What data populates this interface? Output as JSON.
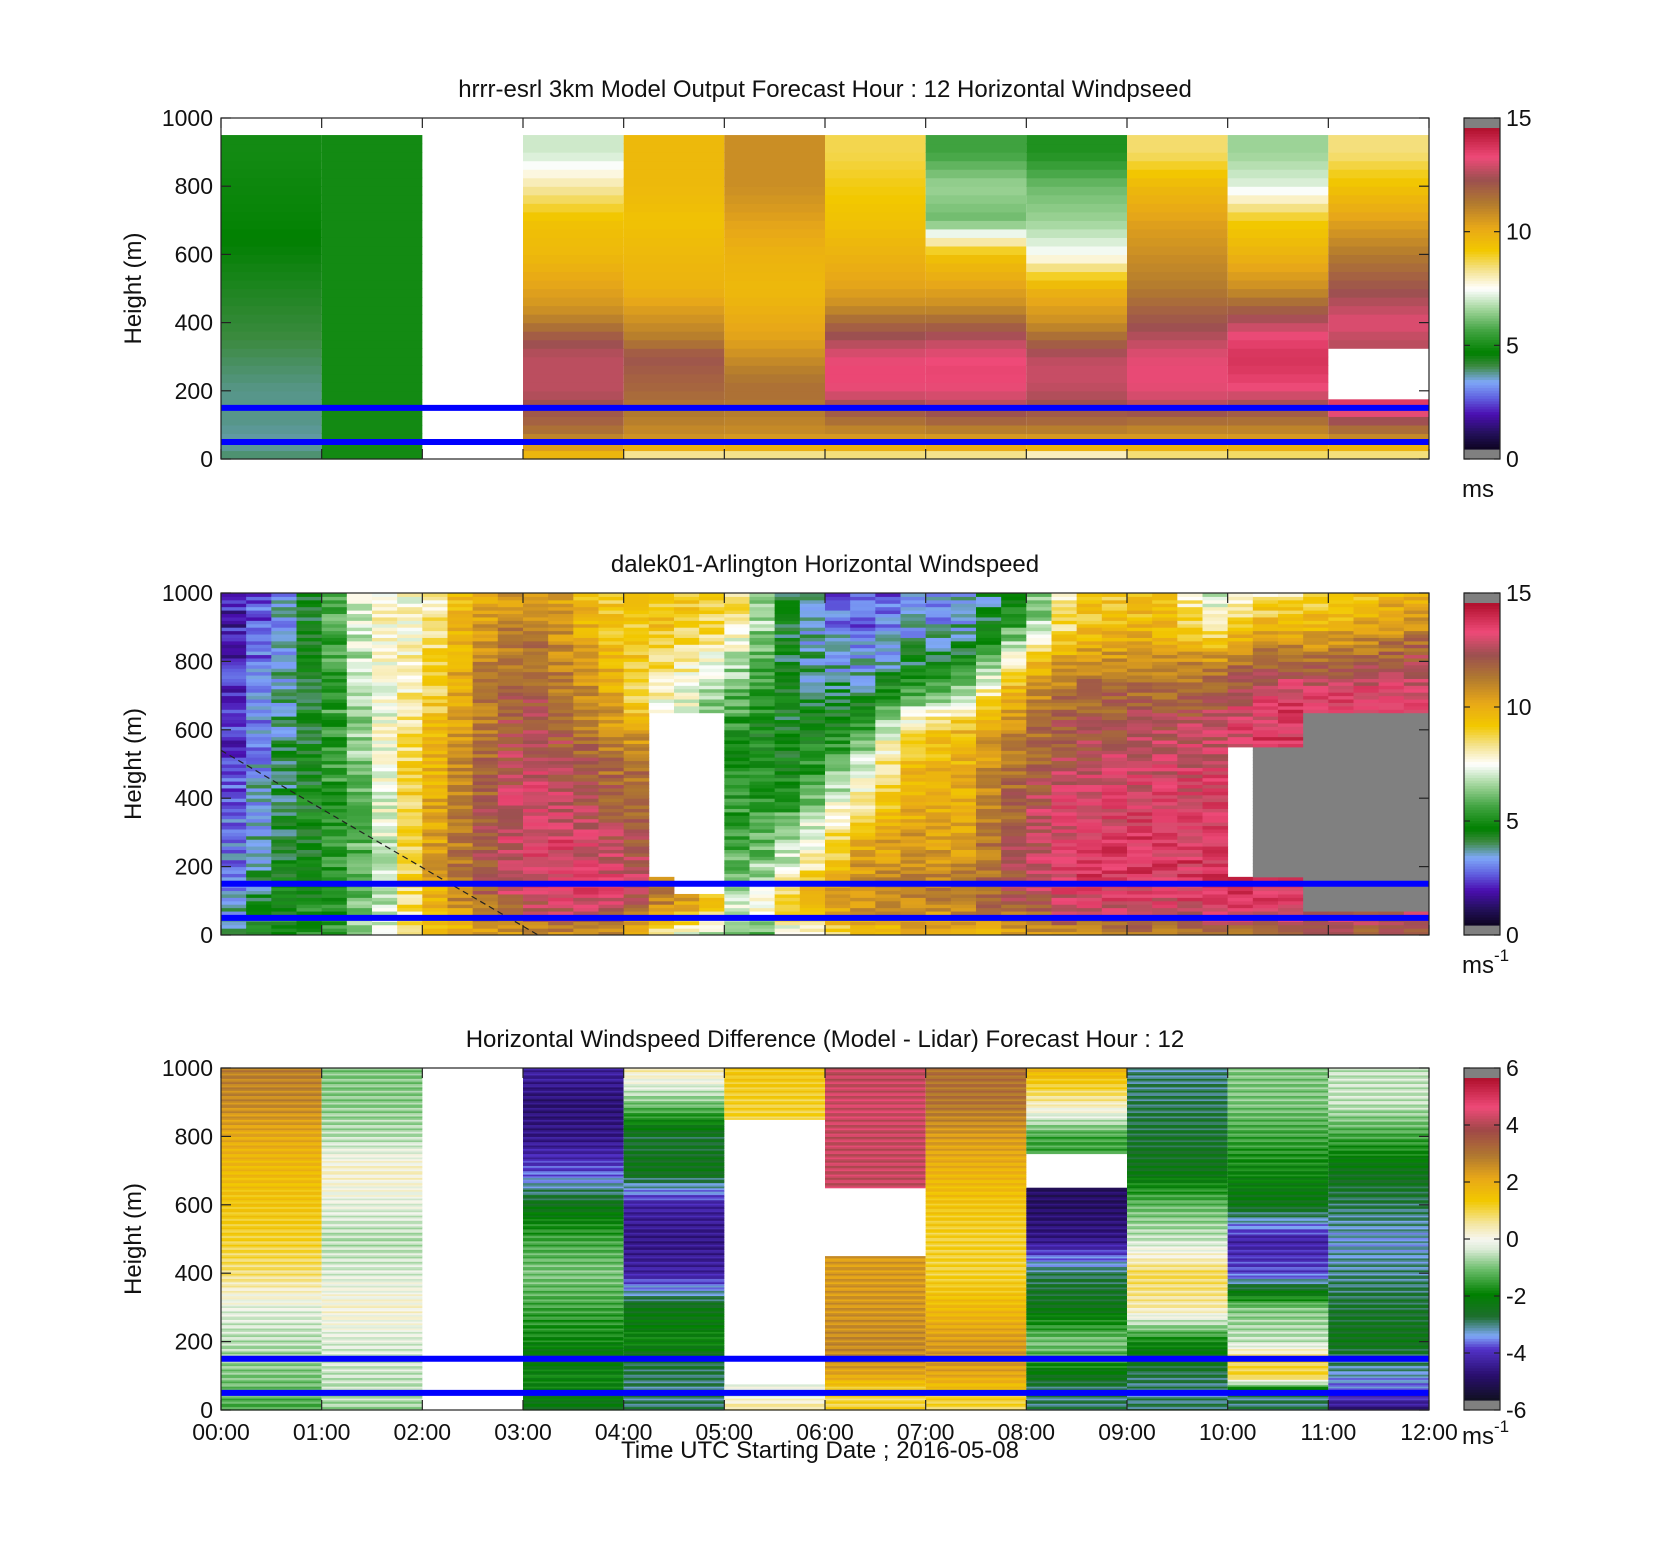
{
  "figure": {
    "xlabel": "Time UTC  Starting Date ; 2016-05-08",
    "x_tick_labels": [
      "00:00",
      "01:00",
      "02:00",
      "03:00",
      "04:00",
      "05:00",
      "06:00",
      "07:00",
      "08:00",
      "09:00",
      "10:00",
      "11:00",
      "12:00"
    ],
    "marker_line_color": "#0000ff",
    "marker_line_heights_m": [
      50,
      150
    ]
  },
  "chart_data": [
    {
      "type": "heatmap",
      "title": "hrrr-esrl 3km Model Output   Forecast Hour : 12 Horizontal Windpseed",
      "ylabel": "Height (m)",
      "xlim": [
        0,
        12
      ],
      "ylim": [
        0,
        1000
      ],
      "y_ticks": [
        0,
        200,
        400,
        600,
        800,
        1000
      ],
      "y_tick_labels": [
        "0",
        "200",
        "400",
        "600",
        "800",
        "1000"
      ],
      "colorbar": {
        "range": [
          0,
          15
        ],
        "ticks": [
          0,
          5,
          10,
          15
        ],
        "tick_labels": [
          "0",
          "5",
          "10",
          "15"
        ],
        "unit": "ms",
        "unit_superscript": "",
        "palette": "speed"
      },
      "time_columns_hours": [
        0,
        1,
        2,
        3,
        4,
        5,
        6,
        7,
        8,
        9,
        10,
        11
      ],
      "height_levels_m": [
        0,
        25,
        50,
        75,
        100,
        150,
        200,
        250,
        300,
        350,
        400,
        450,
        500,
        600,
        700,
        800,
        900,
        1000
      ],
      "values_by_column": [
        [
          3.8,
          3.6,
          3.5,
          3.5,
          3.6,
          3.6,
          3.6,
          3.7,
          3.8,
          3.9,
          4.0,
          4.1,
          4.2,
          4.4,
          4.6,
          4.7,
          4.8
        ],
        [
          4.8,
          4.8,
          4.8,
          4.8,
          4.8,
          4.8,
          4.8,
          4.8,
          4.8,
          4.8,
          4.8,
          4.8,
          4.8,
          4.8,
          4.8,
          4.8,
          4.8
        ],
        [
          null,
          null,
          null,
          null,
          null,
          null,
          null,
          null,
          null,
          null,
          null,
          null,
          null,
          null,
          null,
          null,
          null
        ],
        [
          9.6,
          10.2,
          11.0,
          11.5,
          12.0,
          12.5,
          13.0,
          13.0,
          13.0,
          12.5,
          11.5,
          10.8,
          10.5,
          9.8,
          9.5,
          8.2,
          7.0
        ],
        [
          7.2,
          9.5,
          10.8,
          11.0,
          11.3,
          11.6,
          12.0,
          12.2,
          12.5,
          11.5,
          11.0,
          10.5,
          10.0,
          9.8,
          9.5,
          9.8,
          9.8
        ],
        [
          7.0,
          9.8,
          10.5,
          11.0,
          11.2,
          11.5,
          11.8,
          11.5,
          11.0,
          10.5,
          10.3,
          10.0,
          9.8,
          10.0,
          10.5,
          11.0,
          11.0
        ],
        [
          7.2,
          9.8,
          10.5,
          11.0,
          11.5,
          12.5,
          13.5,
          13.8,
          13.5,
          12.8,
          12.0,
          11.0,
          10.5,
          10.0,
          9.5,
          9.2,
          8.8
        ],
        [
          6.8,
          10.0,
          10.5,
          11.0,
          11.8,
          12.8,
          13.5,
          13.8,
          13.6,
          13.0,
          12.0,
          11.0,
          10.5,
          9.5,
          6.0,
          6.5,
          5.5
        ],
        [
          6.5,
          9.5,
          10.5,
          11.0,
          11.8,
          12.5,
          13.0,
          13.2,
          13.0,
          12.0,
          11.0,
          10.5,
          10.0,
          7.5,
          6.5,
          6.0,
          5.0
        ],
        [
          7.5,
          9.6,
          10.5,
          11.0,
          11.5,
          12.8,
          13.5,
          13.6,
          13.5,
          13.0,
          12.5,
          12.0,
          11.5,
          11.0,
          10.5,
          9.8,
          8.6
        ],
        [
          7.5,
          9.8,
          10.5,
          11.0,
          11.5,
          12.5,
          13.5,
          14.0,
          14.2,
          13.8,
          13.0,
          12.0,
          11.0,
          10.0,
          9.2,
          7.2,
          6.5
        ],
        [
          7.8,
          9.2,
          10.8,
          11.5,
          12.2,
          14.0,
          null,
          null,
          null,
          13.0,
          13.5,
          13.0,
          12.5,
          11.5,
          10.5,
          9.5,
          8.5
        ]
      ]
    },
    {
      "type": "heatmap",
      "title": "dalek01-Arlington  Horizontal Windspeed",
      "ylabel": "Height (m)",
      "xlim": [
        0,
        12
      ],
      "ylim": [
        0,
        1000
      ],
      "y_ticks": [
        0,
        200,
        400,
        600,
        800,
        1000
      ],
      "y_tick_labels": [
        "0",
        "200",
        "400",
        "600",
        "800",
        "1000"
      ],
      "colorbar": {
        "range": [
          0,
          15
        ],
        "ticks": [
          0,
          5,
          10,
          15
        ],
        "tick_labels": [
          "0",
          "5",
          "10",
          "15"
        ],
        "unit": "ms",
        "unit_superscript": "-1",
        "palette": "speed"
      },
      "time_step_hours": 0.25,
      "height_levels_m": [
        0,
        50,
        100,
        150,
        200,
        300,
        400,
        500,
        600,
        700,
        800,
        900,
        1000
      ],
      "profile_keyframes": [
        {
          "t": 0.0,
          "values": [
            3.5,
            3.2,
            2.8,
            2.6,
            2.4,
            2.2,
            2.0,
            1.8,
            1.6,
            1.5,
            1.4,
            1.3,
            1.2
          ]
        },
        {
          "t": 0.25,
          "values": [
            4.5,
            4.0,
            3.6,
            3.4,
            3.2,
            3.0,
            2.8,
            2.6,
            2.4,
            2.3,
            2.2,
            2.1,
            2.0
          ]
        },
        {
          "t": 0.5,
          "values": [
            5.0,
            4.8,
            4.6,
            4.4,
            4.2,
            4.0,
            3.8,
            3.5,
            3.2,
            3.0,
            2.8,
            2.6,
            2.5
          ]
        },
        {
          "t": 1.0,
          "values": [
            5.0,
            5.0,
            4.8,
            4.8,
            4.8,
            4.8,
            4.8,
            4.8,
            4.8,
            4.8,
            4.8,
            4.8,
            4.8
          ]
        },
        {
          "t": 1.5,
          "values": [
            7.0,
            6.5,
            6.2,
            6.0,
            6.0,
            6.2,
            6.5,
            6.8,
            7.0,
            7.2,
            7.5,
            7.8,
            8.0
          ]
        },
        {
          "t": 2.0,
          "values": [
            9.0,
            9.0,
            9.5,
            9.8,
            10.0,
            10.0,
            9.8,
            9.5,
            9.0,
            8.5,
            8.2,
            7.8,
            7.5
          ]
        },
        {
          "t": 2.5,
          "values": [
            10.0,
            11.0,
            11.5,
            12.0,
            12.0,
            12.0,
            11.8,
            11.5,
            11.2,
            11.0,
            10.8,
            10.5,
            10.0
          ]
        },
        {
          "t": 3.0,
          "values": [
            10.5,
            12.0,
            13.0,
            13.5,
            13.5,
            13.6,
            13.5,
            13.2,
            13.0,
            12.5,
            12.0,
            11.5,
            11.0
          ]
        },
        {
          "t": 3.5,
          "values": [
            11.0,
            12.5,
            13.5,
            14.0,
            13.8,
            13.5,
            13.0,
            12.5,
            12.0,
            11.5,
            11.0,
            10.5,
            10.0
          ]
        },
        {
          "t": 4.0,
          "values": [
            10.5,
            12.0,
            13.0,
            13.5,
            13.0,
            12.5,
            12.0,
            11.5,
            10.5,
            10.0,
            9.5,
            9.0,
            9.0
          ]
        },
        {
          "t": 4.3,
          "values": [
            8.0,
            10.0,
            11.5,
            11.5,
            null,
            null,
            null,
            null,
            null,
            8.0,
            9.0,
            9.5,
            9.5
          ]
        },
        {
          "t": 4.75,
          "values": [
            7.0,
            9.0,
            10.5,
            null,
            null,
            null,
            null,
            null,
            null,
            7.0,
            8.0,
            9.0,
            9.5
          ]
        },
        {
          "t": 5.2,
          "values": [
            5.0,
            6.0,
            6.5,
            6.0,
            5.8,
            5.5,
            5.0,
            5.0,
            5.0,
            5.5,
            6.5,
            8.0,
            8.5
          ]
        },
        {
          "t": 5.7,
          "values": [
            7.0,
            9.0,
            10.0,
            8.5,
            7.5,
            6.5,
            5.0,
            4.5,
            4.2,
            4.0,
            3.8,
            3.6,
            3.5
          ]
        },
        {
          "t": 6.3,
          "values": [
            9.0,
            10.5,
            11.0,
            11.0,
            10.5,
            9.5,
            8.0,
            6.5,
            5.0,
            4.0,
            3.0,
            2.5,
            2.2
          ]
        },
        {
          "t": 6.8,
          "values": [
            10.0,
            10.8,
            11.0,
            11.2,
            11.0,
            10.5,
            10.0,
            9.5,
            8.5,
            5.5,
            4.0,
            3.0,
            2.5
          ]
        },
        {
          "t": 7.4,
          "values": [
            10.0,
            10.8,
            11.5,
            11.5,
            11.0,
            10.5,
            10.2,
            10.0,
            9.8,
            7.0,
            4.5,
            3.5,
            3.0
          ]
        },
        {
          "t": 8.0,
          "values": [
            10.5,
            11.5,
            12.5,
            13.0,
            13.0,
            12.8,
            12.5,
            12.0,
            11.5,
            11.0,
            9.0,
            6.0,
            5.0
          ]
        },
        {
          "t": 8.5,
          "values": [
            11.0,
            12.5,
            13.5,
            14.0,
            14.0,
            13.8,
            13.5,
            13.0,
            12.5,
            12.0,
            11.0,
            9.5,
            9.0
          ]
        },
        {
          "t": 9.3,
          "values": [
            11.0,
            12.5,
            13.5,
            14.0,
            14.0,
            13.8,
            13.5,
            13.2,
            12.8,
            12.0,
            11.0,
            10.0,
            9.5
          ]
        },
        {
          "t": 9.9,
          "values": [
            11.0,
            13.0,
            14.0,
            14.2,
            14.0,
            14.0,
            13.8,
            13.5,
            13.0,
            12.5,
            11.0,
            8.0,
            7.0
          ]
        },
        {
          "t": 10.3,
          "values": [
            12.0,
            13.5,
            14.0,
            14.0,
            null,
            null,
            null,
            null,
            14.0,
            13.5,
            12.0,
            10.0,
            8.0
          ]
        },
        {
          "t": 11.0,
          "values": [
            12.0,
            13.0,
            null,
            null,
            null,
            null,
            null,
            null,
            null,
            14.0,
            12.0,
            10.0,
            9.0
          ]
        },
        {
          "t": 11.75,
          "values": [
            12.0,
            13.0,
            null,
            null,
            null,
            null,
            null,
            null,
            null,
            13.5,
            12.5,
            11.0,
            10.0
          ]
        }
      ],
      "data_end_hour": 11.85,
      "annotation": "dashed diagonal line from (0, 540 m) to (3.15, 0 m)"
    },
    {
      "type": "heatmap",
      "title": "Horizontal Windspeed Difference (Model - Lidar) Forecast Hour : 12",
      "ylabel": "Height (m)",
      "xlim": [
        0,
        12
      ],
      "ylim": [
        0,
        1000
      ],
      "y_ticks": [
        0,
        200,
        400,
        600,
        800,
        1000
      ],
      "y_tick_labels": [
        "0",
        "200",
        "400",
        "600",
        "800",
        "1000"
      ],
      "colorbar": {
        "range": [
          -6,
          6
        ],
        "ticks": [
          -6,
          -4,
          -2,
          0,
          2,
          4,
          6
        ],
        "tick_labels": [
          "-6",
          "-4",
          "-2",
          "0",
          "2",
          "4",
          "6"
        ],
        "unit": "ms",
        "unit_superscript": "-1",
        "palette": "diff"
      },
      "time_columns_hours": [
        0,
        1,
        2,
        3,
        4,
        5,
        6,
        7,
        8,
        9,
        10,
        11
      ],
      "height_levels_m": [
        0,
        50,
        100,
        150,
        200,
        300,
        400,
        500,
        600,
        700,
        800,
        900,
        1000
      ],
      "values_by_column": [
        [
          -1.5,
          -1.2,
          -1.0,
          -0.8,
          -0.6,
          -0.2,
          0.8,
          1.2,
          1.5,
          1.8,
          2.2,
          2.8,
          3.0
        ],
        [
          -0.8,
          -0.6,
          -0.5,
          -0.4,
          -0.3,
          0.2,
          -0.3,
          -0.6,
          -0.2,
          0.3,
          -0.6,
          -0.9,
          -1.0
        ],
        [
          null,
          null,
          null,
          null,
          null,
          null,
          null,
          null,
          null,
          null,
          null,
          null,
          null
        ],
        [
          -2.5,
          -2.2,
          -2.0,
          -2.5,
          -2.0,
          -1.5,
          -1.0,
          -1.5,
          -2.5,
          -4.0,
          -4.8,
          -5.0,
          -4.5
        ],
        [
          -3.0,
          -3.2,
          -3.0,
          -2.8,
          -2.0,
          -2.5,
          -4.5,
          -4.8,
          -4.5,
          -2.5,
          -2.8,
          -1.0,
          0.5
        ],
        [
          0.8,
          -0.2,
          null,
          null,
          null,
          null,
          null,
          null,
          null,
          null,
          null,
          1.2,
          1.5
        ],
        [
          1.2,
          1.0,
          2.2,
          2.8,
          2.8,
          2.6,
          2.5,
          null,
          null,
          4.5,
          4.5,
          4.6,
          4.4
        ],
        [
          1.0,
          1.4,
          2.2,
          2.6,
          2.5,
          1.8,
          1.2,
          1.2,
          1.5,
          2.0,
          2.5,
          3.2,
          3.3
        ],
        [
          -3.0,
          -3.2,
          -2.5,
          -1.5,
          -1.0,
          -2.5,
          -3.0,
          -4.8,
          -5.2,
          null,
          -1.5,
          0.5,
          2.0
        ],
        [
          -3.0,
          -3.2,
          -3.0,
          -2.5,
          -2.0,
          0.5,
          1.0,
          -0.5,
          -1.2,
          -2.5,
          -2.8,
          -3.0,
          -3.2
        ],
        [
          -3.0,
          -3.2,
          1.2,
          1.0,
          -0.5,
          -1.0,
          -4.0,
          -4.5,
          -2.5,
          -2.0,
          -1.5,
          -1.0,
          -1.0
        ],
        [
          -5.0,
          -4.0,
          -3.5,
          -3.0,
          -2.5,
          -2.8,
          -3.2,
          -3.5,
          -3.0,
          -2.5,
          -1.5,
          -0.5,
          -0.5
        ]
      ]
    }
  ]
}
